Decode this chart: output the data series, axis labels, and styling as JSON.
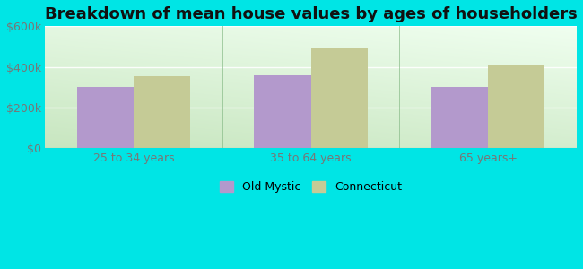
{
  "title": "Breakdown of mean house values by ages of householders",
  "categories": [
    "25 to 34 years",
    "35 to 64 years",
    "65 years+"
  ],
  "old_mystic_values": [
    300000,
    360000,
    300000
  ],
  "connecticut_values": [
    355000,
    490000,
    410000
  ],
  "old_mystic_color": "#b399cc",
  "connecticut_color": "#c5cb96",
  "ylim": [
    0,
    600000
  ],
  "yticks": [
    0,
    200000,
    400000,
    600000
  ],
  "ytick_labels": [
    "$0",
    "$200k",
    "$400k",
    "$600k"
  ],
  "bar_width": 0.32,
  "bg_outer": "#00e5e5",
  "legend_labels": [
    "Old Mystic",
    "Connecticut"
  ],
  "title_fontsize": 13,
  "tick_fontsize": 9,
  "legend_fontsize": 9
}
